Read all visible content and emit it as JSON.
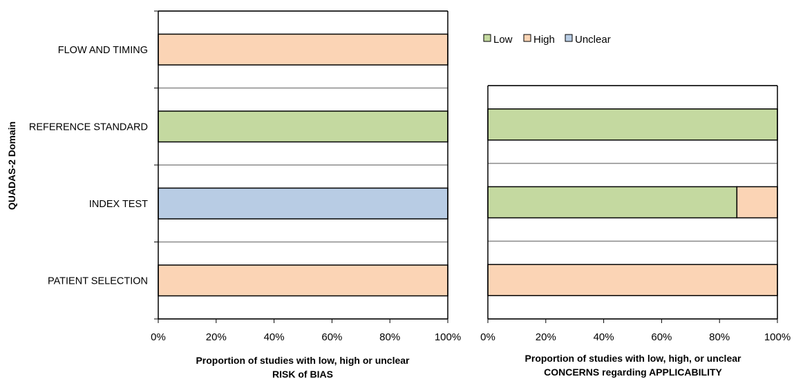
{
  "ylabel": "QUADAS-2 Domain",
  "categories": [
    "FLOW AND TIMING",
    "REFERENCE STANDARD",
    "INDEX TEST",
    "PATIENT SELECTION"
  ],
  "legend": [
    {
      "label": "Low",
      "color": "#c4d9a0"
    },
    {
      "label": "High",
      "color": "#fbd4b5"
    },
    {
      "label": "Unclear",
      "color": "#b8cce4"
    }
  ],
  "chart_data": [
    {
      "type": "bar",
      "orientation": "horizontal",
      "stacked": true,
      "categories": [
        "FLOW AND TIMING",
        "REFERENCE STANDARD",
        "INDEX TEST",
        "PATIENT SELECTION"
      ],
      "series": [
        {
          "name": "Low",
          "color": "#c4d9a0",
          "values": [
            0,
            100,
            0,
            0
          ]
        },
        {
          "name": "High",
          "color": "#fbd4b5",
          "values": [
            100,
            0,
            0,
            100
          ]
        },
        {
          "name": "Unclear",
          "color": "#b8cce4",
          "values": [
            0,
            0,
            100,
            0
          ]
        }
      ],
      "xlim": [
        0,
        100
      ],
      "xticks": [
        "0%",
        "20%",
        "40%",
        "60%",
        "80%",
        "100%"
      ],
      "xlabel_line1": "Proportion of studies with low, high or unclear",
      "xlabel_line2": "RISK of BIAS",
      "ylabel": "QUADAS-2 Domain",
      "grid": "horizontal"
    },
    {
      "type": "bar",
      "orientation": "horizontal",
      "stacked": true,
      "categories": [
        "REFERENCE STANDARD",
        "INDEX TEST",
        "PATIENT SELECTION"
      ],
      "series": [
        {
          "name": "Low",
          "color": "#c4d9a0",
          "values": [
            100,
            86,
            0
          ]
        },
        {
          "name": "High",
          "color": "#fbd4b5",
          "values": [
            0,
            14,
            100
          ]
        },
        {
          "name": "Unclear",
          "color": "#b8cce4",
          "values": [
            0,
            0,
            0
          ]
        }
      ],
      "xlim": [
        0,
        100
      ],
      "xticks": [
        "0%",
        "20%",
        "40%",
        "60%",
        "80%",
        "100%"
      ],
      "xlabel_line1": "Proportion of studies with low, high, or unclear",
      "xlabel_line2": "CONCERNS regarding APPLICABILITY",
      "legend_position": "top",
      "grid": "horizontal"
    }
  ]
}
